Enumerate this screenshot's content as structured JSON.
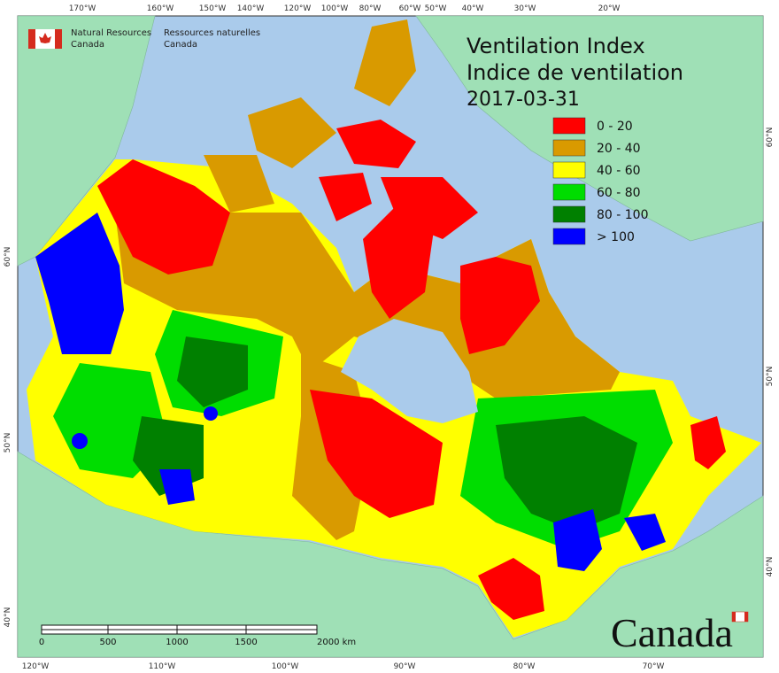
{
  "header": {
    "agency_en": [
      "Natural Resources",
      "Canada"
    ],
    "agency_fr": [
      "Ressources naturelles",
      "Canada"
    ]
  },
  "title": {
    "en": "Ventilation Index",
    "fr": "Indice de ventilation",
    "date": "2017-03-31"
  },
  "legend": [
    {
      "label": "0 - 20",
      "color": "#ff0000"
    },
    {
      "label": "20 - 40",
      "color": "#d99a00"
    },
    {
      "label": "40 - 60",
      "color": "#ffff00"
    },
    {
      "label": "60 - 80",
      "color": "#00dd00"
    },
    {
      "label": "80 - 100",
      "color": "#008000"
    },
    {
      "label": "> 100",
      "color": "#0000ff"
    }
  ],
  "graticule": {
    "top": [
      "170°W",
      "160°W",
      "150°W",
      "140°W",
      "120°W",
      "100°W",
      "80°W",
      "60°W",
      "50°W",
      "40°W",
      "30°W",
      "20°W"
    ],
    "bottom": [
      "120°W",
      "110°W",
      "100°W",
      "90°W",
      "80°W",
      "70°W"
    ],
    "left": [
      "60°N",
      "50°N",
      "40°N"
    ],
    "right": [
      "60°N",
      "50°N",
      "40°N"
    ]
  },
  "scale_bar": [
    "0",
    "500",
    "1000",
    "1500",
    "2000 km"
  ],
  "wordmark": "Canada"
}
